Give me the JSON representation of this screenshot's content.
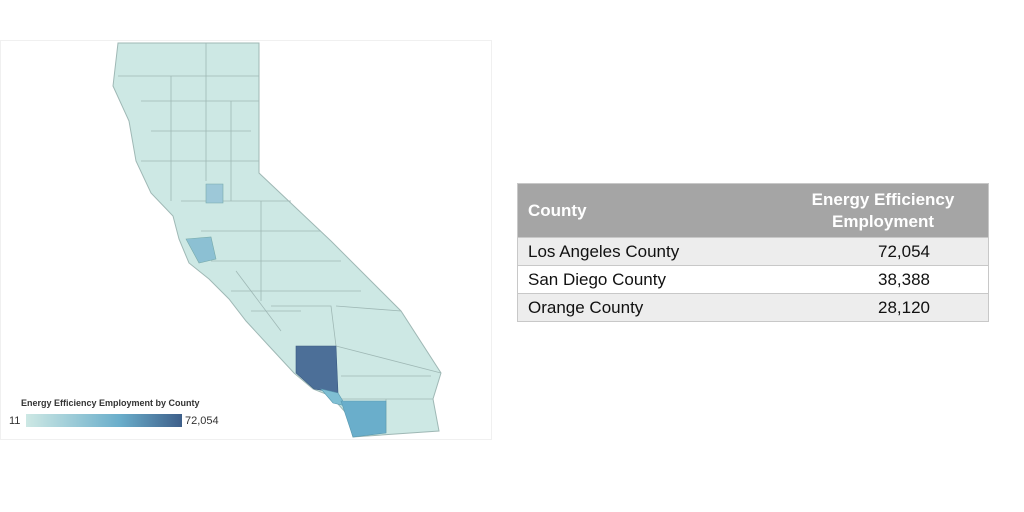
{
  "map": {
    "legend": {
      "title": "Energy Efficiency Employment by County",
      "min": "11",
      "max": "72,054"
    }
  },
  "table": {
    "columns": [
      "County",
      "Energy Efficiency Employment"
    ],
    "rows": [
      [
        "Los Angeles County",
        "72,054"
      ],
      [
        "San Diego County",
        "38,388"
      ],
      [
        "Orange County",
        "28,120"
      ]
    ]
  }
}
